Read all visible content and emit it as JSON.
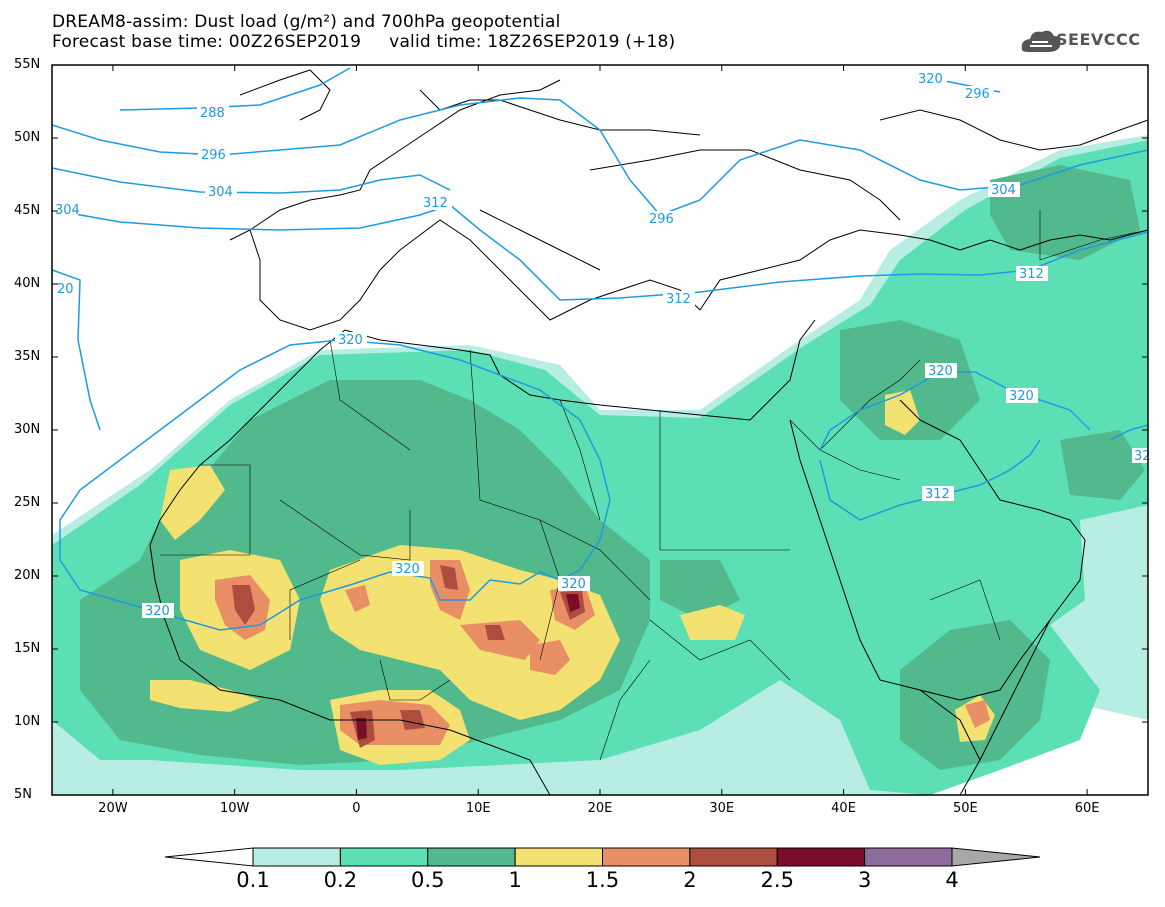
{
  "title": {
    "line1": "DREAM8-assim: Dust load (g/m²) and 700hPa geopotential",
    "line2": "Forecast base time: 00Z26SEP2019     valid time: 18Z26SEP2019 (+18)"
  },
  "logo": {
    "text": "SEEVCCC",
    "icon": "cloud-icon"
  },
  "axes": {
    "lat_labels": [
      "55N",
      "50N",
      "45N",
      "40N",
      "35N",
      "30N",
      "25N",
      "20N",
      "15N",
      "10N",
      "5N"
    ],
    "lat_values": [
      55,
      50,
      45,
      40,
      35,
      30,
      25,
      20,
      15,
      10,
      5
    ],
    "lon_labels": [
      "20W",
      "10W",
      "0",
      "10E",
      "20E",
      "30E",
      "40E",
      "50E",
      "60E"
    ],
    "lon_values": [
      -20,
      -10,
      0,
      10,
      20,
      30,
      40,
      50,
      60
    ],
    "lon_range": [
      -25,
      65
    ],
    "lat_range": [
      5,
      55
    ]
  },
  "contours": {
    "variable": "700hPa geopotential",
    "labels": [
      "288",
      "296",
      "304",
      "312",
      "320",
      "296",
      "296",
      "304",
      "304",
      "312",
      "312",
      "312",
      "320",
      "320",
      "320",
      "320",
      "320",
      "320",
      "20",
      "32"
    ]
  },
  "colorbar": {
    "labels": [
      "0.1",
      "0.2",
      "0.5",
      "1",
      "1.5",
      "2",
      "2.5",
      "3",
      "4"
    ],
    "colors": [
      "#ffffff",
      "#b7ede2",
      "#5ddfb6",
      "#52b98c",
      "#f3e172",
      "#e98f65",
      "#ad4d3f",
      "#7b0c2a",
      "#8d6b9c",
      "#a8a8a8"
    ]
  },
  "dust_colors": {
    "c01": "#b7ede2",
    "c02": "#5ddfb6",
    "c05": "#52b98c",
    "c1": "#f3e172",
    "c15": "#e98f65",
    "c2": "#ad4d3f",
    "c25": "#7b0c2a"
  },
  "contour_color": "#1e9be0"
}
